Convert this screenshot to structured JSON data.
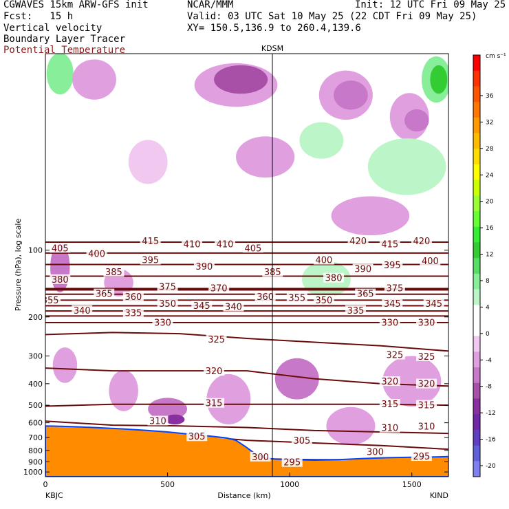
{
  "header": {
    "model": "CGWAVES 15km ARW-GFS init",
    "org": "NCAR/MMM",
    "init": "Init: 12 UTC Fri 09 May 25",
    "fcst": "Fcst:   15 h",
    "valid": "Valid: 03 UTC Sat 10 May 25 (22 CDT Fri 09 May 25)",
    "field1": "Vertical velocity",
    "xy": "XY= 150.5,136.9 to 260.4,139.6",
    "field2": "Boundary Layer Tracer",
    "field3": "Potential Temperature"
  },
  "colors": {
    "theta": "#6b0a0a",
    "terrain": "#ff8c00",
    "marker": "#000000"
  },
  "chart_data": {
    "type": "heatmap",
    "title": "",
    "xlabel": "Distance (km)",
    "ylabel": "Pressure (hPa), log scale",
    "xlim": [
      0,
      1650
    ],
    "ylim": [
      1050,
      13
    ],
    "y_log": true,
    "x_ticks": [
      "0",
      "500",
      "1000",
      "1500"
    ],
    "x_tick_values": [
      0,
      500,
      1000,
      1500
    ],
    "y_ticks": [
      "100",
      "200",
      "300",
      "400",
      "500",
      "600",
      "700",
      "800",
      "900",
      "1000"
    ],
    "y_tick_values": [
      100,
      200,
      300,
      400,
      500,
      600,
      700,
      800,
      900,
      1000
    ],
    "endpoint_left": "KBJC",
    "endpoint_right": "KIND",
    "station_marker": {
      "label": "KDSM",
      "x": 930
    },
    "colorbar": {
      "unit": "cm s⁻¹",
      "labels": [
        "36",
        "32",
        "28",
        "24",
        "20",
        "16",
        "12",
        "8",
        "4",
        "0",
        "-4",
        "-8",
        "-12",
        "-16",
        "-20"
      ],
      "colors": [
        "#ff0000",
        "#ff3300",
        "#ff5500",
        "#ff7700",
        "#ff9900",
        "#ffbb00",
        "#ffdd00",
        "#ffff00",
        "#ccff00",
        "#99ff33",
        "#66ff33",
        "#33ee33",
        "#33cc33",
        "#55dd66",
        "#88ee99",
        "#bbf5c8",
        "#ffffff",
        "#ffffff",
        "#f0c8f0",
        "#e0a0e0",
        "#c878c8",
        "#a850a8",
        "#8830a0",
        "#7028a8",
        "#6040c0",
        "#6060d8",
        "#8080f0"
      ]
    },
    "contours": [
      {
        "value": 415,
        "label": "415",
        "p": [
          92,
          92,
          92,
          92,
          92,
          92,
          92
        ]
      },
      {
        "value": 405,
        "label": "405",
        "p": [
          103,
          103,
          103,
          103,
          103,
          103,
          103
        ]
      },
      {
        "value": 395,
        "label": "395",
        "p": [
          116,
          116,
          116,
          116,
          116,
          116,
          116
        ]
      },
      {
        "value": 385,
        "label": "385",
        "p": [
          131,
          131,
          131,
          131,
          131,
          131,
          131
        ]
      },
      {
        "value": 375,
        "label": "375",
        "p": [
          150,
          150,
          150,
          150,
          150,
          150,
          150
        ]
      },
      {
        "value": 365,
        "label": "365",
        "p": [
          158,
          158,
          158,
          158,
          158,
          158,
          158
        ]
      },
      {
        "value": 355,
        "label": "355",
        "p": [
          168,
          168,
          168,
          168,
          168,
          168,
          168
        ]
      },
      {
        "value": 345,
        "label": "345",
        "p": [
          178,
          178,
          178,
          178,
          178,
          178,
          178
        ]
      },
      {
        "value": 340,
        "label": "340",
        "p": [
          188,
          188,
          188,
          188,
          188,
          188,
          188
        ]
      },
      {
        "value": 335,
        "label": "335",
        "p": [
          198,
          198,
          198,
          198,
          198,
          198,
          198
        ]
      },
      {
        "value": 330,
        "label": "330",
        "p": [
          212,
          212,
          212,
          212,
          212,
          212,
          212
        ]
      },
      {
        "value": 325,
        "label": "325",
        "p": [
          240,
          235,
          238,
          250,
          260,
          270,
          285
        ]
      },
      {
        "value": 320,
        "label": "320",
        "p": [
          340,
          350,
          350,
          350,
          380,
          400,
          410
        ]
      },
      {
        "value": 315,
        "label": "315",
        "p": [
          505,
          495,
          495,
          495,
          495,
          495,
          500
        ]
      },
      {
        "value": 310,
        "label": "310",
        "p": [
          590,
          615,
          620,
          630,
          650,
          660,
          670
        ]
      },
      {
        "value": 305,
        "label": "305",
        "p": [
          630,
          650,
          680,
          720,
          740,
          760,
          790
        ]
      },
      {
        "value": 300,
        "label": "300",
        "p": [
          700,
          760,
          820,
          870,
          880,
          880,
          880
        ]
      },
      {
        "value": 295,
        "label": "295",
        "p": [
          900,
          905,
          910,
          910,
          905,
          895,
          880
        ]
      }
    ],
    "contour_x": [
      0,
      275,
      550,
      825,
      1100,
      1375,
      1650
    ],
    "labels": [
      {
        "text": "415",
        "x": 430,
        "p": 92
      },
      {
        "text": "410",
        "x": 600,
        "p": 95
      },
      {
        "text": "410",
        "x": 735,
        "p": 95
      },
      {
        "text": "405",
        "x": 850,
        "p": 99
      },
      {
        "text": "420",
        "x": 1280,
        "p": 92
      },
      {
        "text": "415",
        "x": 1410,
        "p": 95
      },
      {
        "text": "420",
        "x": 1540,
        "p": 92
      },
      {
        "text": "405",
        "x": 60,
        "p": 99
      },
      {
        "text": "400",
        "x": 210,
        "p": 105
      },
      {
        "text": "395",
        "x": 430,
        "p": 112
      },
      {
        "text": "390",
        "x": 650,
        "p": 120
      },
      {
        "text": "400",
        "x": 1140,
        "p": 112
      },
      {
        "text": "395",
        "x": 1420,
        "p": 118
      },
      {
        "text": "400",
        "x": 1575,
        "p": 113
      },
      {
        "text": "390",
        "x": 1300,
        "p": 123
      },
      {
        "text": "385",
        "x": 280,
        "p": 127
      },
      {
        "text": "385",
        "x": 930,
        "p": 127
      },
      {
        "text": "380",
        "x": 60,
        "p": 137
      },
      {
        "text": "380",
        "x": 1180,
        "p": 135
      },
      {
        "text": "375",
        "x": 500,
        "p": 148
      },
      {
        "text": "370",
        "x": 710,
        "p": 150
      },
      {
        "text": "375",
        "x": 1430,
        "p": 150
      },
      {
        "text": "365",
        "x": 240,
        "p": 159
      },
      {
        "text": "360",
        "x": 360,
        "p": 164
      },
      {
        "text": "360",
        "x": 900,
        "p": 164
      },
      {
        "text": "355",
        "x": 1030,
        "p": 166
      },
      {
        "text": "350",
        "x": 1140,
        "p": 170
      },
      {
        "text": "365",
        "x": 1310,
        "p": 159
      },
      {
        "text": "355",
        "x": 20,
        "p": 170
      },
      {
        "text": "350",
        "x": 500,
        "p": 176
      },
      {
        "text": "345",
        "x": 640,
        "p": 180
      },
      {
        "text": "340",
        "x": 770,
        "p": 182
      },
      {
        "text": "345",
        "x": 1420,
        "p": 176
      },
      {
        "text": "345",
        "x": 1590,
        "p": 176
      },
      {
        "text": "340",
        "x": 150,
        "p": 189
      },
      {
        "text": "335",
        "x": 360,
        "p": 194
      },
      {
        "text": "335",
        "x": 1270,
        "p": 189
      },
      {
        "text": "330",
        "x": 480,
        "p": 214
      },
      {
        "text": "330",
        "x": 1410,
        "p": 214
      },
      {
        "text": "330",
        "x": 1560,
        "p": 214
      },
      {
        "text": "325",
        "x": 700,
        "p": 255
      },
      {
        "text": "325",
        "x": 1430,
        "p": 300
      },
      {
        "text": "325",
        "x": 1560,
        "p": 305
      },
      {
        "text": "320",
        "x": 690,
        "p": 355
      },
      {
        "text": "320",
        "x": 1410,
        "p": 395
      },
      {
        "text": "320",
        "x": 1560,
        "p": 405
      },
      {
        "text": "315",
        "x": 690,
        "p": 495
      },
      {
        "text": "315",
        "x": 1410,
        "p": 500
      },
      {
        "text": "315",
        "x": 1560,
        "p": 505
      },
      {
        "text": "310",
        "x": 460,
        "p": 595
      },
      {
        "text": "310",
        "x": 1410,
        "p": 640
      },
      {
        "text": "310",
        "x": 1560,
        "p": 630
      },
      {
        "text": "305",
        "x": 620,
        "p": 700
      },
      {
        "text": "305",
        "x": 1050,
        "p": 730
      },
      {
        "text": "300",
        "x": 880,
        "p": 865
      },
      {
        "text": "300",
        "x": 1350,
        "p": 820
      },
      {
        "text": "295",
        "x": 1010,
        "p": 915
      },
      {
        "text": "295",
        "x": 1540,
        "p": 860
      }
    ],
    "terrain_p": [
      [
        0,
        620
      ],
      [
        50,
        622
      ],
      [
        120,
        625
      ],
      [
        220,
        632
      ],
      [
        320,
        640
      ],
      [
        420,
        650
      ],
      [
        500,
        660
      ],
      [
        560,
        670
      ],
      [
        620,
        680
      ],
      [
        680,
        690
      ],
      [
        740,
        702
      ],
      [
        780,
        720
      ],
      [
        820,
        770
      ],
      [
        860,
        830
      ],
      [
        900,
        865
      ],
      [
        940,
        875
      ],
      [
        1000,
        880
      ],
      [
        1100,
        885
      ],
      [
        1200,
        880
      ],
      [
        1300,
        870
      ],
      [
        1400,
        862
      ],
      [
        1500,
        858
      ],
      [
        1600,
        855
      ],
      [
        1650,
        852
      ]
    ],
    "vv_regions": [
      {
        "cx": 60,
        "cy": 16,
        "rx": 55,
        "ry": 4,
        "level": 3
      },
      {
        "cx": 200,
        "cy": 17,
        "rx": 90,
        "ry": 3.5,
        "level": 6
      },
      {
        "cx": 780,
        "cy": 18,
        "rx": 170,
        "ry": 4,
        "level": 6
      },
      {
        "cx": 800,
        "cy": 17,
        "rx": 110,
        "ry": 2.5,
        "level": 8
      },
      {
        "cx": 1230,
        "cy": 20,
        "rx": 110,
        "ry": 5,
        "level": 6
      },
      {
        "cx": 1250,
        "cy": 20,
        "rx": 70,
        "ry": 3,
        "level": 7
      },
      {
        "cx": 1490,
        "cy": 25,
        "rx": 80,
        "ry": 6,
        "level": 6
      },
      {
        "cx": 1520,
        "cy": 26,
        "rx": 50,
        "ry": 3,
        "level": 7
      },
      {
        "cx": 1600,
        "cy": 17,
        "rx": 60,
        "ry": 4,
        "level": 3
      },
      {
        "cx": 1610,
        "cy": 17,
        "rx": 35,
        "ry": 2.5,
        "level": 2
      },
      {
        "cx": 1480,
        "cy": 42,
        "rx": 160,
        "ry": 12,
        "level": 4
      },
      {
        "cx": 1330,
        "cy": 70,
        "rx": 160,
        "ry": 14,
        "level": 6
      },
      {
        "cx": 1130,
        "cy": 32,
        "rx": 90,
        "ry": 6,
        "level": 4
      },
      {
        "cx": 900,
        "cy": 38,
        "rx": 120,
        "ry": 8,
        "level": 6
      },
      {
        "cx": 420,
        "cy": 40,
        "rx": 80,
        "ry": 9,
        "level": 5
      },
      {
        "cx": 60,
        "cy": 120,
        "rx": 40,
        "ry": 30,
        "level": 7
      },
      {
        "cx": 300,
        "cy": 140,
        "rx": 60,
        "ry": 20,
        "level": 6
      },
      {
        "cx": 1150,
        "cy": 135,
        "rx": 100,
        "ry": 25,
        "level": 4
      },
      {
        "cx": 80,
        "cy": 330,
        "rx": 50,
        "ry": 60,
        "level": 6
      },
      {
        "cx": 1030,
        "cy": 380,
        "rx": 90,
        "ry": 80,
        "level": 7
      },
      {
        "cx": 1500,
        "cy": 390,
        "rx": 120,
        "ry": 100,
        "level": 6
      },
      {
        "cx": 500,
        "cy": 520,
        "rx": 80,
        "ry": 60,
        "level": 7
      },
      {
        "cx": 530,
        "cy": 580,
        "rx": 40,
        "ry": 30,
        "level": 9
      },
      {
        "cx": 320,
        "cy": 430,
        "rx": 60,
        "ry": 90,
        "level": 6
      },
      {
        "cx": 750,
        "cy": 470,
        "rx": 90,
        "ry": 120,
        "level": 6
      },
      {
        "cx": 1250,
        "cy": 620,
        "rx": 100,
        "ry": 120,
        "level": 6
      }
    ]
  }
}
